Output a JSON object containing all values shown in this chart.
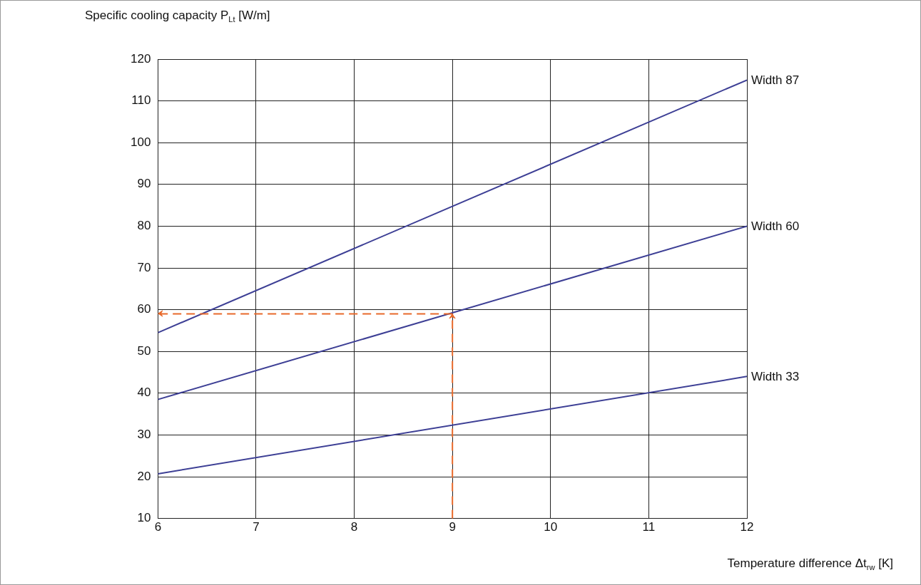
{
  "chart_data": {
    "type": "line",
    "ylabel": "Specific cooling capacity P$_{Lt}$ [W/m]",
    "xlabel": "Temperature difference Δt$_{rw}$ [K]",
    "x": [
      6,
      12
    ],
    "series": [
      {
        "name": "Width 87",
        "color": "#3d3f95",
        "values": [
          54.5,
          115
        ]
      },
      {
        "name": "Width 60",
        "color": "#3d3f95",
        "values": [
          38.5,
          80
        ]
      },
      {
        "name": "Width 33",
        "color": "#3d3f95",
        "values": [
          20.7,
          44
        ]
      }
    ],
    "xlim": [
      6,
      12
    ],
    "xticks": [
      6,
      7,
      8,
      9,
      10,
      11,
      12
    ],
    "ylim": [
      10,
      120
    ],
    "yticks": [
      10,
      20,
      30,
      40,
      50,
      60,
      70,
      80,
      90,
      100,
      110,
      120
    ],
    "grid": true,
    "legend": false,
    "marker": "none",
    "line_style": "solid",
    "ref_lines": [
      {
        "axis": "x",
        "value": 9,
        "color": "#e8692a",
        "line_style": "dashed"
      },
      {
        "axis": "y",
        "value": 59,
        "color": "#e8692a",
        "line_style": "dashed"
      }
    ]
  }
}
